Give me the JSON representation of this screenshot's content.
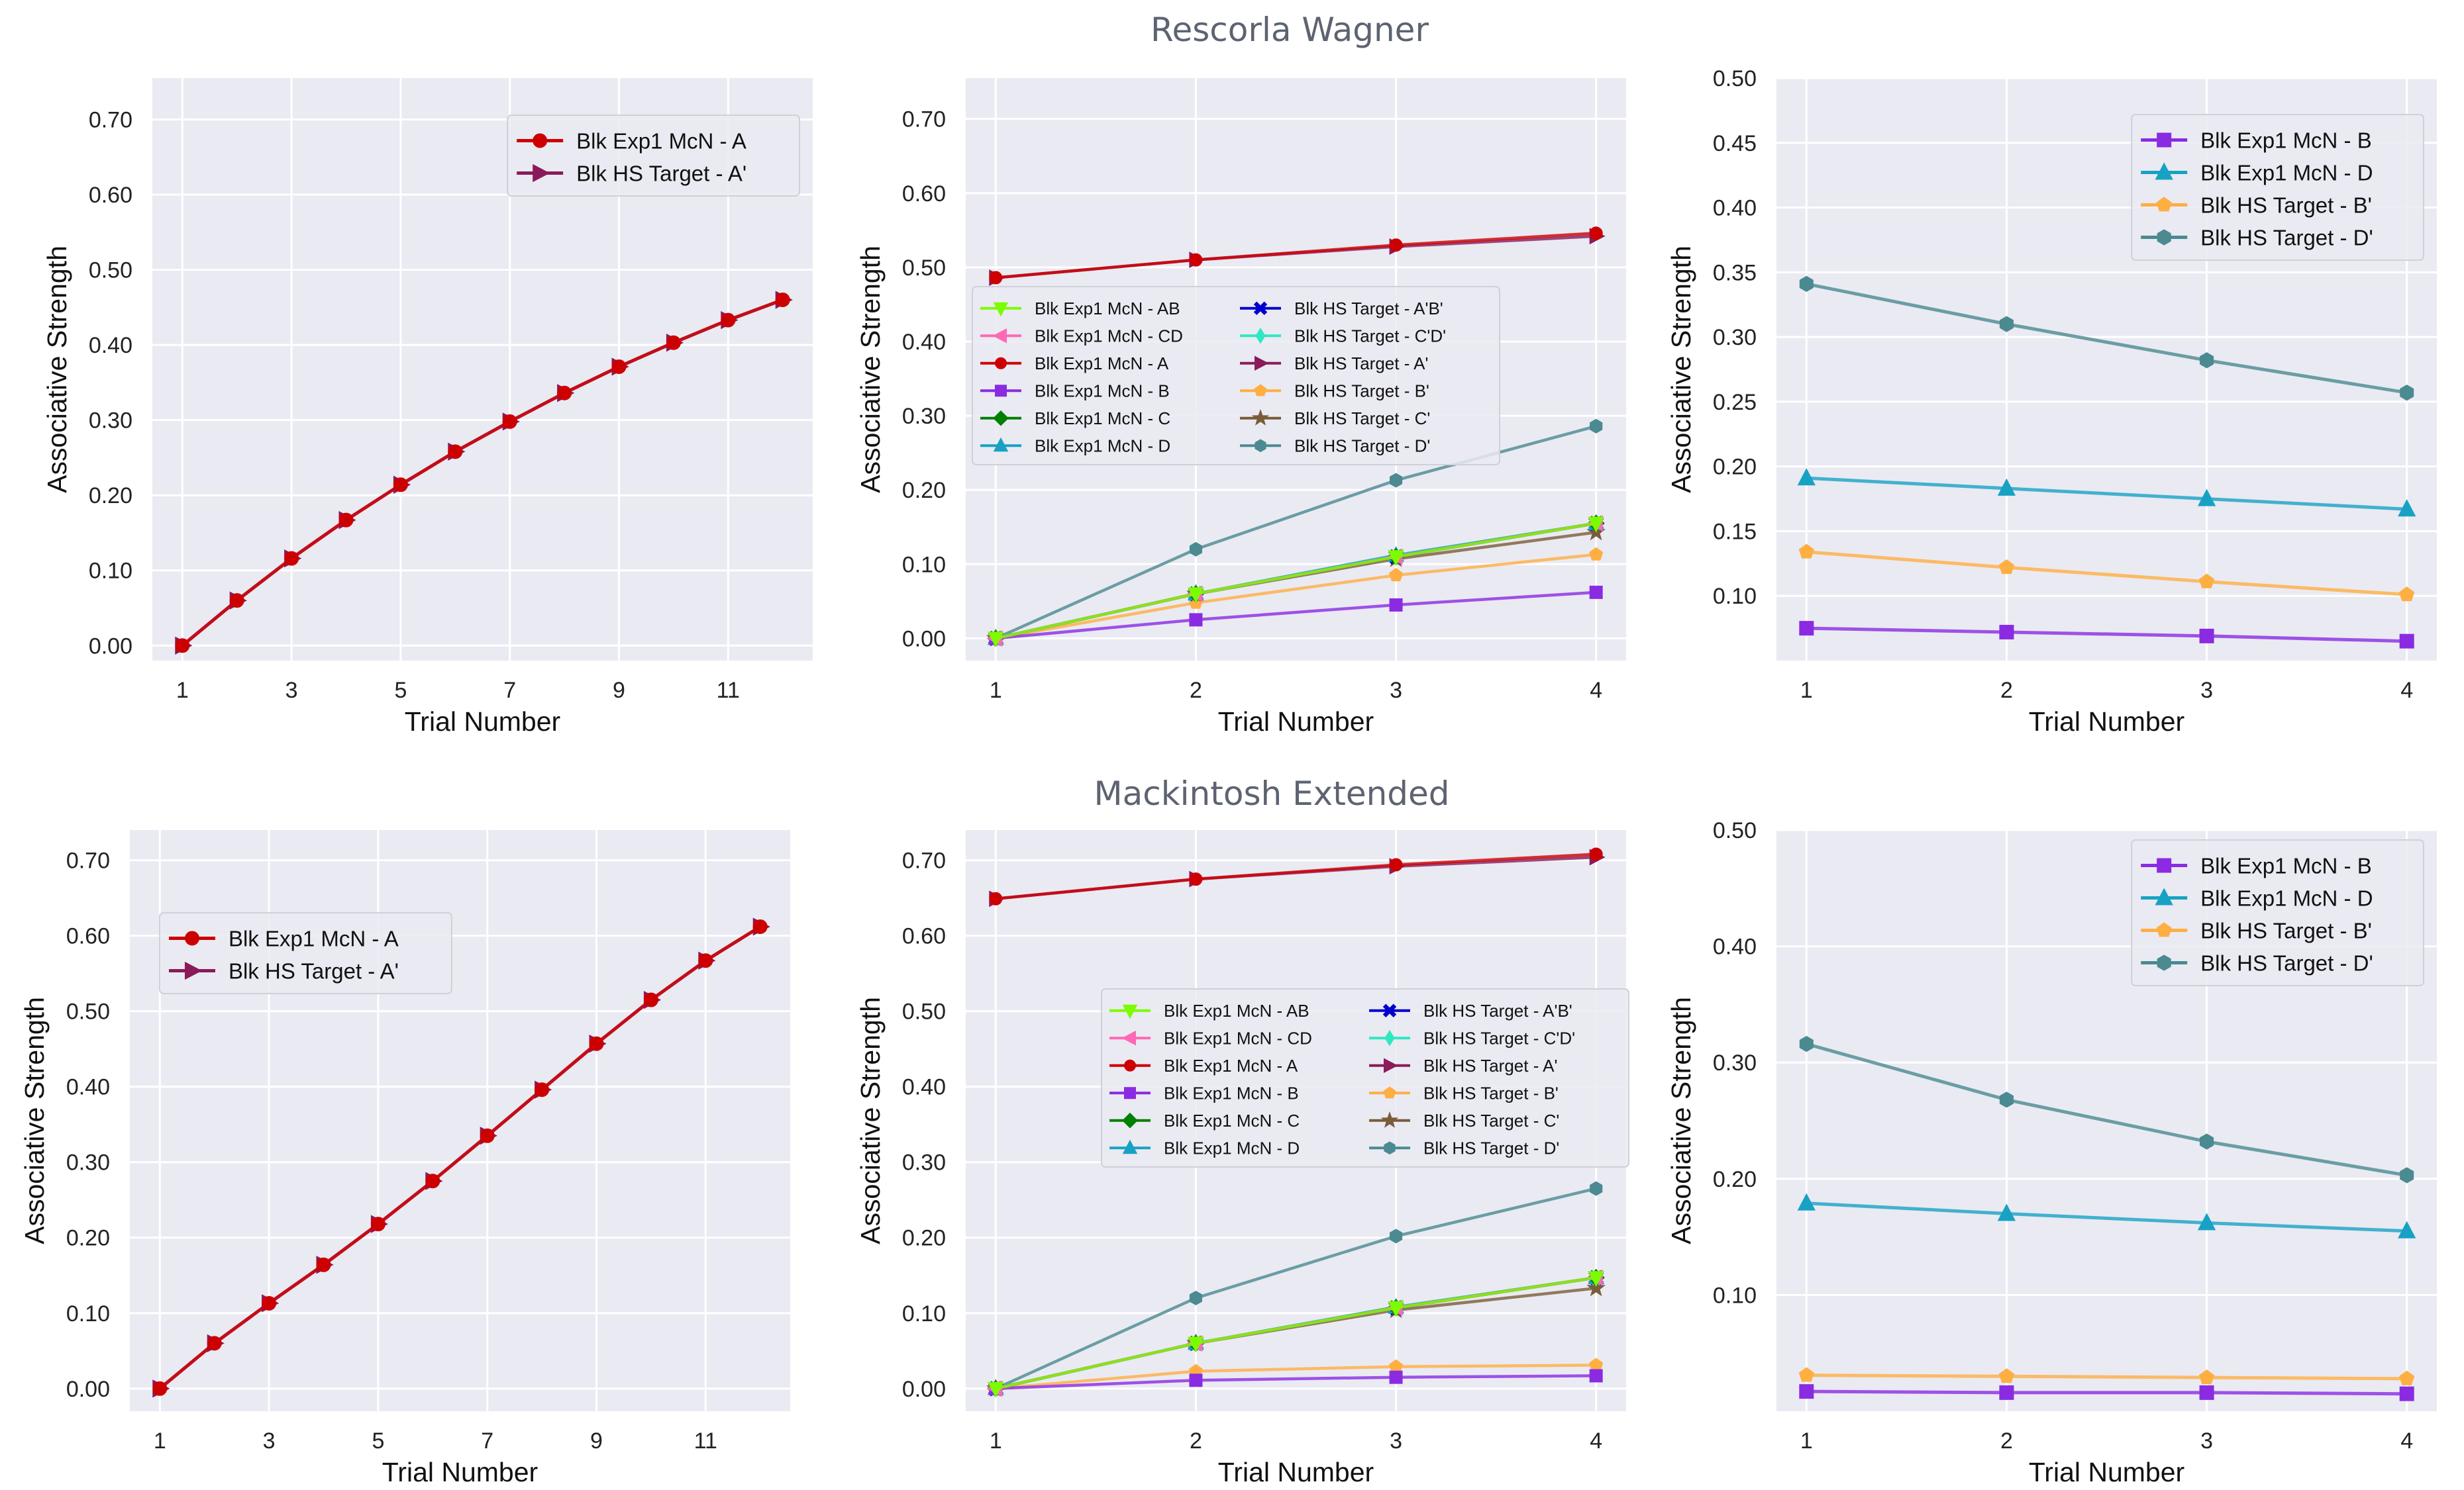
{
  "figure": {
    "suptitles": [
      "Rescorla Wagner",
      "Mackintosh Extended"
    ]
  },
  "styles": {
    "Blk Exp1 McN - AB": {
      "color": "#7cfc00",
      "marker": "tri_down"
    },
    "Blk Exp1 McN - CD": {
      "color": "#ff69b4",
      "marker": "tri_left"
    },
    "Blk Exp1 McN - A": {
      "color": "#cc0000",
      "marker": "circle"
    },
    "Blk Exp1 McN - B": {
      "color": "#8a2be2",
      "marker": "square"
    },
    "Blk Exp1 McN - C": {
      "color": "#008000",
      "marker": "diamond"
    },
    "Blk Exp1 McN - D": {
      "color": "#17a2c4",
      "marker": "tri_up"
    },
    "Blk HS Target - A'B'": {
      "color": "#0000cd",
      "marker": "x"
    },
    "Blk HS Target - C'D'": {
      "color": "#2ee8c0",
      "marker": "diamond_thin"
    },
    "Blk HS Target - A'": {
      "color": "#8b1a5a",
      "marker": "tri_right"
    },
    "Blk HS Target - B'": {
      "color": "#ffae42",
      "marker": "pentagon"
    },
    "Blk HS Target - C'": {
      "color": "#7a5c3a",
      "marker": "star"
    },
    "Blk HS Target - D'": {
      "color": "#4a8a90",
      "marker": "hexagon"
    }
  },
  "chart_data": [
    {
      "id": "rw_a",
      "type": "line",
      "suptitle": "",
      "xlabel": "Trial Number",
      "ylabel": "Associative Strength",
      "xlim": [
        0.45,
        12.55
      ],
      "ylim": [
        -0.02,
        0.755
      ],
      "xticks": [
        "1",
        "3",
        "5",
        "7",
        "9",
        "11"
      ],
      "xtickvals": [
        1,
        3,
        5,
        7,
        9,
        11
      ],
      "yticks": [
        "0.00",
        "0.10",
        "0.20",
        "0.30",
        "0.40",
        "0.50",
        "0.60",
        "0.70"
      ],
      "ytickvals": [
        0,
        0.1,
        0.2,
        0.3,
        0.4,
        0.5,
        0.6,
        0.7
      ],
      "legend": {
        "loc": "top-right",
        "cols": 1,
        "size": "large"
      },
      "series": [
        {
          "name": "Blk Exp1 McN - A",
          "x": [
            1,
            2,
            3,
            4,
            5,
            6,
            7,
            8,
            9,
            10,
            11,
            12
          ],
          "values": [
            0.0,
            0.06,
            0.116,
            0.167,
            0.214,
            0.258,
            0.298,
            0.336,
            0.371,
            0.403,
            0.433,
            0.46
          ]
        },
        {
          "name": "Blk HS Target - A'",
          "x": [
            1,
            2,
            3,
            4,
            5,
            6,
            7,
            8,
            9,
            10,
            11,
            12
          ],
          "values": [
            0.0,
            0.06,
            0.116,
            0.167,
            0.214,
            0.258,
            0.298,
            0.336,
            0.371,
            0.403,
            0.433,
            0.46
          ]
        }
      ]
    },
    {
      "id": "rw_all",
      "type": "line",
      "suptitle": "Rescorla Wagner",
      "xlabel": "Trial Number",
      "ylabel": "Associative Strength",
      "xlim": [
        0.85,
        4.15
      ],
      "ylim": [
        -0.03,
        0.755
      ],
      "xticks": [
        "1",
        "2",
        "3",
        "4"
      ],
      "xtickvals": [
        1,
        2,
        3,
        4
      ],
      "yticks": [
        "0.00",
        "0.10",
        "0.20",
        "0.30",
        "0.40",
        "0.50",
        "0.60",
        "0.70"
      ],
      "ytickvals": [
        0,
        0.1,
        0.2,
        0.3,
        0.4,
        0.5,
        0.6,
        0.7
      ],
      "legend": {
        "loc": "center-left",
        "cols": 2,
        "size": "small"
      },
      "series": [
        {
          "name": "Blk Exp1 McN - AB",
          "x": [
            1,
            2,
            3,
            4
          ],
          "values": [
            0.0,
            0.06,
            0.11,
            0.155
          ]
        },
        {
          "name": "Blk Exp1 McN - CD",
          "x": [
            1,
            2,
            3,
            4
          ],
          "values": [
            0.0,
            0.06,
            0.11,
            0.155
          ]
        },
        {
          "name": "Blk Exp1 McN - A",
          "x": [
            1,
            2,
            3,
            4
          ],
          "values": [
            0.486,
            0.51,
            0.53,
            0.546
          ]
        },
        {
          "name": "Blk Exp1 McN - B",
          "x": [
            1,
            2,
            3,
            4
          ],
          "values": [
            0.0,
            0.025,
            0.045,
            0.062
          ]
        },
        {
          "name": "Blk Exp1 McN - C",
          "x": [
            1,
            2,
            3,
            4
          ],
          "values": [
            0.0,
            0.06,
            0.11,
            0.155
          ]
        },
        {
          "name": "Blk Exp1 McN - D",
          "x": [
            1,
            2,
            3,
            4
          ],
          "values": [
            0.0,
            0.06,
            0.112,
            0.155
          ]
        },
        {
          "name": "Blk HS Target - A'B'",
          "x": [
            1,
            2,
            3,
            4
          ],
          "values": [
            0.0,
            0.06,
            0.11,
            0.155
          ]
        },
        {
          "name": "Blk HS Target - C'D'",
          "x": [
            1,
            2,
            3,
            4
          ],
          "values": [
            0.0,
            0.06,
            0.11,
            0.155
          ]
        },
        {
          "name": "Blk HS Target - A'",
          "x": [
            1,
            2,
            3,
            4
          ],
          "values": [
            0.486,
            0.51,
            0.528,
            0.542
          ]
        },
        {
          "name": "Blk HS Target - B'",
          "x": [
            1,
            2,
            3,
            4
          ],
          "values": [
            0.0,
            0.048,
            0.085,
            0.113
          ]
        },
        {
          "name": "Blk HS Target - C'",
          "x": [
            1,
            2,
            3,
            4
          ],
          "values": [
            0.0,
            0.06,
            0.107,
            0.143
          ]
        },
        {
          "name": "Blk HS Target - D'",
          "x": [
            1,
            2,
            3,
            4
          ],
          "values": [
            0.0,
            0.12,
            0.213,
            0.286
          ]
        }
      ]
    },
    {
      "id": "rw_bd",
      "type": "line",
      "suptitle": "",
      "xlabel": "Trial Number",
      "ylabel": "Associative Strength",
      "xlim": [
        0.85,
        4.15
      ],
      "ylim": [
        0.05,
        0.5
      ],
      "xticks": [
        "1",
        "2",
        "3",
        "4"
      ],
      "xtickvals": [
        1,
        2,
        3,
        4
      ],
      "yticks": [
        "0.10",
        "0.15",
        "0.20",
        "0.25",
        "0.30",
        "0.35",
        "0.40",
        "0.45",
        "0.50"
      ],
      "ytickvals": [
        0.1,
        0.15,
        0.2,
        0.25,
        0.3,
        0.35,
        0.4,
        0.45,
        0.5
      ],
      "legend": {
        "loc": "top-right",
        "cols": 1,
        "size": "large"
      },
      "series": [
        {
          "name": "Blk Exp1 McN - B",
          "x": [
            1,
            2,
            3,
            4
          ],
          "values": [
            0.075,
            0.072,
            0.069,
            0.065
          ]
        },
        {
          "name": "Blk Exp1 McN - D",
          "x": [
            1,
            2,
            3,
            4
          ],
          "values": [
            0.191,
            0.183,
            0.175,
            0.167
          ]
        },
        {
          "name": "Blk HS Target - B'",
          "x": [
            1,
            2,
            3,
            4
          ],
          "values": [
            0.134,
            0.122,
            0.111,
            0.101
          ]
        },
        {
          "name": "Blk HS Target - D'",
          "x": [
            1,
            2,
            3,
            4
          ],
          "values": [
            0.341,
            0.31,
            0.282,
            0.257
          ]
        }
      ]
    },
    {
      "id": "me_a",
      "type": "line",
      "suptitle": "",
      "xlabel": "Trial Number",
      "ylabel": "Associative Strength",
      "xlim": [
        0.45,
        12.55
      ],
      "ylim": [
        -0.03,
        0.74
      ],
      "xticks": [
        "1",
        "3",
        "5",
        "7",
        "9",
        "11"
      ],
      "xtickvals": [
        1,
        3,
        5,
        7,
        9,
        11
      ],
      "yticks": [
        "0.00",
        "0.10",
        "0.20",
        "0.30",
        "0.40",
        "0.50",
        "0.60",
        "0.70"
      ],
      "ytickvals": [
        0,
        0.1,
        0.2,
        0.3,
        0.4,
        0.5,
        0.6,
        0.7
      ],
      "legend": {
        "loc": "upper-left",
        "cols": 1,
        "size": "large"
      },
      "series": [
        {
          "name": "Blk Exp1 McN - A",
          "x": [
            1,
            2,
            3,
            4,
            5,
            6,
            7,
            8,
            9,
            10,
            11,
            12
          ],
          "values": [
            0.0,
            0.06,
            0.113,
            0.164,
            0.218,
            0.275,
            0.335,
            0.396,
            0.457,
            0.515,
            0.567,
            0.612
          ]
        },
        {
          "name": "Blk HS Target - A'",
          "x": [
            1,
            2,
            3,
            4,
            5,
            6,
            7,
            8,
            9,
            10,
            11,
            12
          ],
          "values": [
            0.0,
            0.06,
            0.113,
            0.164,
            0.218,
            0.275,
            0.335,
            0.396,
            0.457,
            0.515,
            0.567,
            0.612
          ]
        }
      ]
    },
    {
      "id": "me_all",
      "type": "line",
      "suptitle": "Mackintosh Extended",
      "xlabel": "Trial Number",
      "ylabel": "Associative Strength",
      "xlim": [
        0.85,
        4.15
      ],
      "ylim": [
        -0.03,
        0.74
      ],
      "xticks": [
        "1",
        "2",
        "3",
        "4"
      ],
      "xtickvals": [
        1,
        2,
        3,
        4
      ],
      "yticks": [
        "0.00",
        "0.10",
        "0.20",
        "0.30",
        "0.40",
        "0.50",
        "0.60",
        "0.70"
      ],
      "ytickvals": [
        0,
        0.1,
        0.2,
        0.3,
        0.4,
        0.5,
        0.6,
        0.7
      ],
      "legend": {
        "loc": "center",
        "cols": 2,
        "size": "small"
      },
      "series": [
        {
          "name": "Blk Exp1 McN - AB",
          "x": [
            1,
            2,
            3,
            4
          ],
          "values": [
            0.0,
            0.06,
            0.107,
            0.147
          ]
        },
        {
          "name": "Blk Exp1 McN - CD",
          "x": [
            1,
            2,
            3,
            4
          ],
          "values": [
            0.0,
            0.06,
            0.107,
            0.147
          ]
        },
        {
          "name": "Blk Exp1 McN - A",
          "x": [
            1,
            2,
            3,
            4
          ],
          "values": [
            0.649,
            0.675,
            0.694,
            0.708
          ]
        },
        {
          "name": "Blk Exp1 McN - B",
          "x": [
            1,
            2,
            3,
            4
          ],
          "values": [
            0.0,
            0.011,
            0.015,
            0.017
          ]
        },
        {
          "name": "Blk Exp1 McN - C",
          "x": [
            1,
            2,
            3,
            4
          ],
          "values": [
            0.0,
            0.06,
            0.107,
            0.147
          ]
        },
        {
          "name": "Blk Exp1 McN - D",
          "x": [
            1,
            2,
            3,
            4
          ],
          "values": [
            0.0,
            0.06,
            0.108,
            0.147
          ]
        },
        {
          "name": "Blk HS Target - A'B'",
          "x": [
            1,
            2,
            3,
            4
          ],
          "values": [
            0.0,
            0.06,
            0.107,
            0.147
          ]
        },
        {
          "name": "Blk HS Target - C'D'",
          "x": [
            1,
            2,
            3,
            4
          ],
          "values": [
            0.0,
            0.06,
            0.107,
            0.147
          ]
        },
        {
          "name": "Blk HS Target - A'",
          "x": [
            1,
            2,
            3,
            4
          ],
          "values": [
            0.649,
            0.675,
            0.692,
            0.704
          ]
        },
        {
          "name": "Blk HS Target - B'",
          "x": [
            1,
            2,
            3,
            4
          ],
          "values": [
            0.0,
            0.023,
            0.029,
            0.031
          ]
        },
        {
          "name": "Blk HS Target - C'",
          "x": [
            1,
            2,
            3,
            4
          ],
          "values": [
            0.0,
            0.06,
            0.104,
            0.133
          ]
        },
        {
          "name": "Blk HS Target - D'",
          "x": [
            1,
            2,
            3,
            4
          ],
          "values": [
            0.0,
            0.12,
            0.202,
            0.265
          ]
        }
      ]
    },
    {
      "id": "me_bd",
      "type": "line",
      "suptitle": "",
      "xlabel": "Trial Number",
      "ylabel": "Associative Strength",
      "xlim": [
        0.85,
        4.15
      ],
      "ylim": [
        0.0,
        0.5
      ],
      "xticks": [
        "1",
        "2",
        "3",
        "4"
      ],
      "xtickvals": [
        1,
        2,
        3,
        4
      ],
      "yticks": [
        "0.10",
        "0.20",
        "0.30",
        "0.40",
        "0.50"
      ],
      "ytickvals": [
        0.1,
        0.2,
        0.3,
        0.4,
        0.5
      ],
      "legend": {
        "loc": "top-right",
        "cols": 1,
        "size": "large"
      },
      "series": [
        {
          "name": "Blk Exp1 McN - B",
          "x": [
            1,
            2,
            3,
            4
          ],
          "values": [
            0.017,
            0.016,
            0.016,
            0.015
          ]
        },
        {
          "name": "Blk Exp1 McN - D",
          "x": [
            1,
            2,
            3,
            4
          ],
          "values": [
            0.179,
            0.17,
            0.162,
            0.155
          ]
        },
        {
          "name": "Blk HS Target - B'",
          "x": [
            1,
            2,
            3,
            4
          ],
          "values": [
            0.031,
            0.03,
            0.029,
            0.028
          ]
        },
        {
          "name": "Blk HS Target - D'",
          "x": [
            1,
            2,
            3,
            4
          ],
          "values": [
            0.316,
            0.268,
            0.232,
            0.203
          ]
        }
      ]
    }
  ]
}
